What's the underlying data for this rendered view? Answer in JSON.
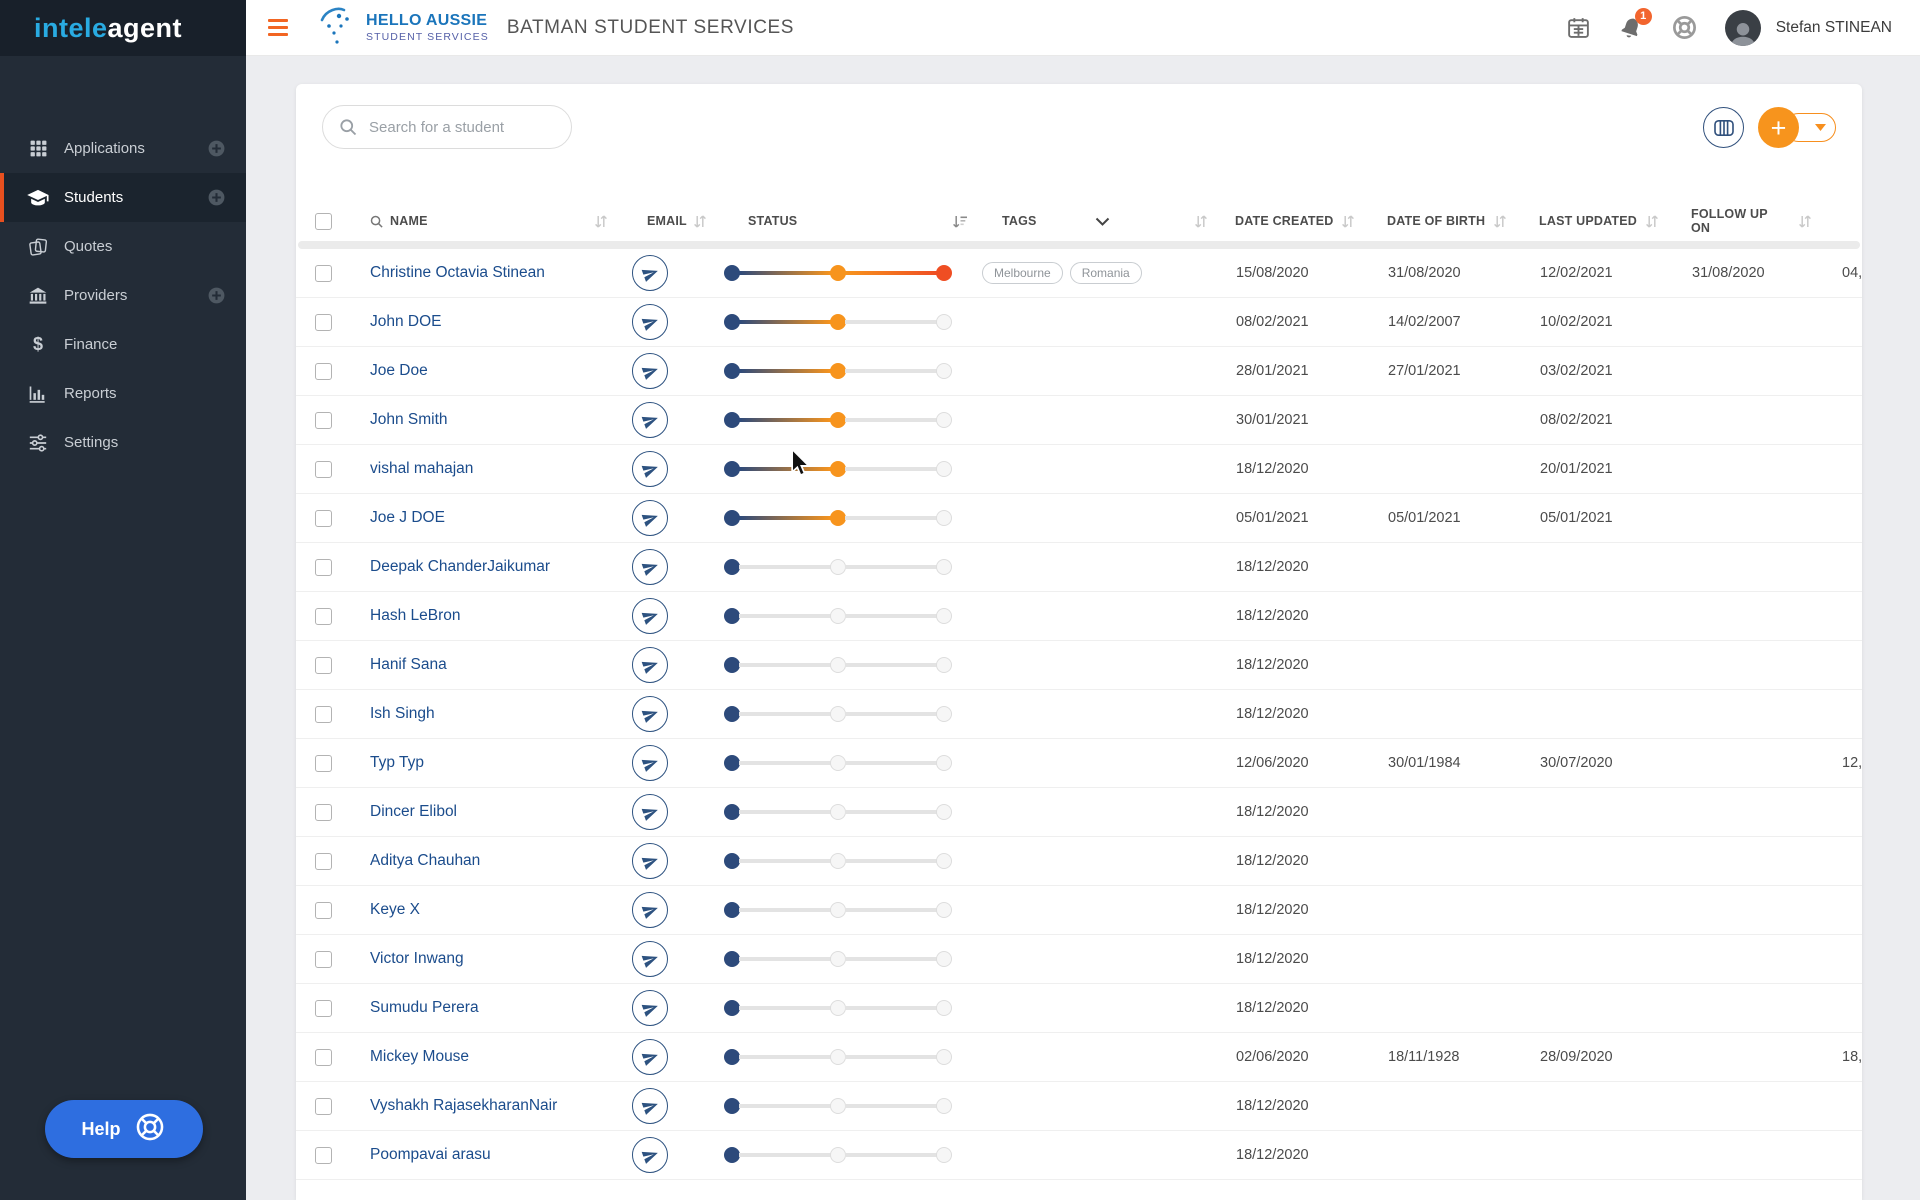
{
  "app": {
    "logo_part1": "intele",
    "logo_part2": "agent"
  },
  "header": {
    "brand_line1": "HELLO AUSSIE",
    "brand_line2": "STUDENT SERVICES",
    "title": "BATMAN STUDENT SERVICES",
    "notification_count": "1",
    "user_name": "Stefan STINEAN"
  },
  "sidebar": {
    "items": [
      {
        "label": "Applications",
        "icon": "grid",
        "has_plus": true,
        "active": false
      },
      {
        "label": "Students",
        "icon": "graduation-cap",
        "has_plus": true,
        "active": true
      },
      {
        "label": "Quotes",
        "icon": "copy",
        "has_plus": false,
        "active": false
      },
      {
        "label": "Providers",
        "icon": "bank",
        "has_plus": true,
        "active": false
      },
      {
        "label": "Finance",
        "icon": "dollar",
        "has_plus": false,
        "active": false
      },
      {
        "label": "Reports",
        "icon": "bar-chart",
        "has_plus": false,
        "active": false
      },
      {
        "label": "Settings",
        "icon": "sliders",
        "has_plus": false,
        "active": false
      }
    ],
    "help_label": "Help"
  },
  "toolbar": {
    "search_placeholder": "Search for a student"
  },
  "table": {
    "columns": [
      "NAME",
      "EMAIL",
      "STATUS",
      "TAGS",
      "DATE CREATED",
      "DATE OF BIRTH",
      "LAST UPDATED",
      "FOLLOW UP ON"
    ],
    "rows": [
      {
        "name": "Christine Octavia Stinean",
        "status": 3,
        "tags": [
          "Melbourne",
          "Romania"
        ],
        "date_created": "15/08/2020",
        "date_of_birth": "31/08/2020",
        "last_updated": "12/02/2021",
        "follow_up_on": "31/08/2020",
        "overflow": "04,"
      },
      {
        "name": "John DOE",
        "status": 2,
        "tags": [],
        "date_created": "08/02/2021",
        "date_of_birth": "14/02/2007",
        "last_updated": "10/02/2021",
        "follow_up_on": "",
        "overflow": ""
      },
      {
        "name": "Joe Doe",
        "status": 2,
        "tags": [],
        "date_created": "28/01/2021",
        "date_of_birth": "27/01/2021",
        "last_updated": "03/02/2021",
        "follow_up_on": "",
        "overflow": ""
      },
      {
        "name": "John Smith",
        "status": 2,
        "tags": [],
        "date_created": "30/01/2021",
        "date_of_birth": "",
        "last_updated": "08/02/2021",
        "follow_up_on": "",
        "overflow": ""
      },
      {
        "name": "vishal mahajan",
        "status": 2,
        "tags": [],
        "date_created": "18/12/2020",
        "date_of_birth": "",
        "last_updated": "20/01/2021",
        "follow_up_on": "",
        "overflow": ""
      },
      {
        "name": "Joe J DOE",
        "status": 2,
        "tags": [],
        "date_created": "05/01/2021",
        "date_of_birth": "05/01/2021",
        "last_updated": "05/01/2021",
        "follow_up_on": "",
        "overflow": ""
      },
      {
        "name": "Deepak ChanderJaikumar",
        "status": 1,
        "tags": [],
        "date_created": "18/12/2020",
        "date_of_birth": "",
        "last_updated": "",
        "follow_up_on": "",
        "overflow": ""
      },
      {
        "name": "Hash LeBron",
        "status": 1,
        "tags": [],
        "date_created": "18/12/2020",
        "date_of_birth": "",
        "last_updated": "",
        "follow_up_on": "",
        "overflow": ""
      },
      {
        "name": "Hanif Sana",
        "status": 1,
        "tags": [],
        "date_created": "18/12/2020",
        "date_of_birth": "",
        "last_updated": "",
        "follow_up_on": "",
        "overflow": ""
      },
      {
        "name": "Ish Singh",
        "status": 1,
        "tags": [],
        "date_created": "18/12/2020",
        "date_of_birth": "",
        "last_updated": "",
        "follow_up_on": "",
        "overflow": ""
      },
      {
        "name": "Typ Typ",
        "status": 1,
        "tags": [],
        "date_created": "12/06/2020",
        "date_of_birth": "30/01/1984",
        "last_updated": "30/07/2020",
        "follow_up_on": "",
        "overflow": "12,"
      },
      {
        "name": "Dincer Elibol",
        "status": 1,
        "tags": [],
        "date_created": "18/12/2020",
        "date_of_birth": "",
        "last_updated": "",
        "follow_up_on": "",
        "overflow": ""
      },
      {
        "name": "Aditya Chauhan",
        "status": 1,
        "tags": [],
        "date_created": "18/12/2020",
        "date_of_birth": "",
        "last_updated": "",
        "follow_up_on": "",
        "overflow": ""
      },
      {
        "name": "Keye X",
        "status": 1,
        "tags": [],
        "date_created": "18/12/2020",
        "date_of_birth": "",
        "last_updated": "",
        "follow_up_on": "",
        "overflow": ""
      },
      {
        "name": "Victor Inwang",
        "status": 1,
        "tags": [],
        "date_created": "18/12/2020",
        "date_of_birth": "",
        "last_updated": "",
        "follow_up_on": "",
        "overflow": ""
      },
      {
        "name": "Sumudu Perera",
        "status": 1,
        "tags": [],
        "date_created": "18/12/2020",
        "date_of_birth": "",
        "last_updated": "",
        "follow_up_on": "",
        "overflow": ""
      },
      {
        "name": "Mickey Mouse",
        "status": 1,
        "tags": [],
        "date_created": "02/06/2020",
        "date_of_birth": "18/11/1928",
        "last_updated": "28/09/2020",
        "follow_up_on": "",
        "overflow": "18,"
      },
      {
        "name": "Vyshakh RajasekharanNair",
        "status": 1,
        "tags": [],
        "date_created": "18/12/2020",
        "date_of_birth": "",
        "last_updated": "",
        "follow_up_on": "",
        "overflow": ""
      },
      {
        "name": "Poompavai arasu",
        "status": 1,
        "tags": [],
        "date_created": "18/12/2020",
        "date_of_birth": "",
        "last_updated": "",
        "follow_up_on": "",
        "overflow": ""
      }
    ]
  },
  "colors": {
    "accent_orange": "#f26522",
    "slider_orange": "#f7941d",
    "slider_red": "#ef4e23",
    "slider_navy": "#2d4a7b",
    "link_blue": "#1b4c8c",
    "help_blue": "#2e6ee0",
    "brand_blue": "#1b75bb",
    "sidebar_bg": "#232c37"
  }
}
